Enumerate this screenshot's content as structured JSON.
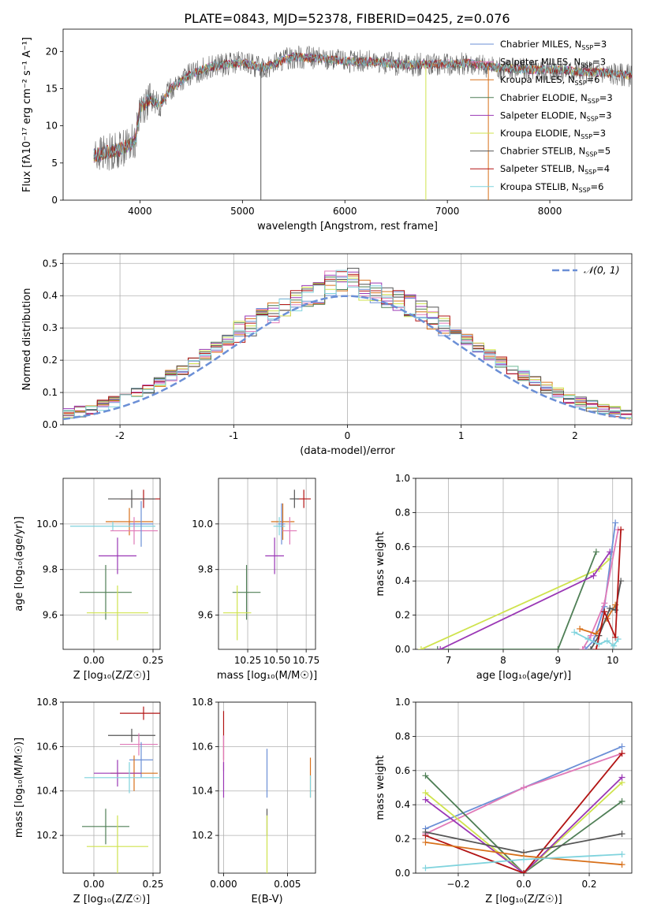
{
  "figure_title": "PLATE=0843, MJD=52378, FIBERID=0425, z=0.076",
  "colors": {
    "chabrier_miles": "#6b8fd6",
    "salpeter_miles": "#e07ab8",
    "kroupa_miles": "#d8701a",
    "chabrier_elodie": "#4f7f56",
    "salpeter_elodie": "#9a37b5",
    "kroupa_elodie": "#cfe34d",
    "chabrier_stelib": "#555555",
    "salpeter_stelib": "#b21414",
    "kroupa_stelib": "#7fd3dd"
  },
  "legend": [
    {
      "key": "chabrier_miles",
      "text": "Chabrier MILES, N",
      "sub": "SSP",
      "suffix": "=3"
    },
    {
      "key": "salpeter_miles",
      "text": "Salpeter MILES, N",
      "sub": "SSP",
      "suffix": "=3"
    },
    {
      "key": "kroupa_miles",
      "text": "Kroupa MILES, N",
      "sub": "SSP",
      "suffix": "=6"
    },
    {
      "key": "chabrier_elodie",
      "text": "Chabrier ELODIE, N",
      "sub": "SSP",
      "suffix": "=3"
    },
    {
      "key": "salpeter_elodie",
      "text": "Salpeter ELODIE, N",
      "sub": "SSP",
      "suffix": "=3"
    },
    {
      "key": "kroupa_elodie",
      "text": "Kroupa ELODIE, N",
      "sub": "SSP",
      "suffix": "=3"
    },
    {
      "key": "chabrier_stelib",
      "text": "Chabrier STELIB, N",
      "sub": "SSP",
      "suffix": "=5"
    },
    {
      "key": "salpeter_stelib",
      "text": "Salpeter STELIB, N",
      "sub": "SSP",
      "suffix": "=4"
    },
    {
      "key": "kroupa_stelib",
      "text": "Kroupa STELIB, N",
      "sub": "SSP",
      "suffix": "=6"
    }
  ],
  "chart_data": [
    {
      "id": "spectrum",
      "type": "line",
      "xlabel": "wavelength [Angstrom, rest frame]",
      "ylabel": "Flux [fλ10⁻¹⁷ erg cm⁻² s⁻¹ A⁻¹]",
      "xlim": [
        3250,
        8800
      ],
      "ylim": [
        0,
        23
      ],
      "xticks": [
        4000,
        5000,
        6000,
        7000,
        8000
      ],
      "yticks": [
        0,
        5,
        10,
        15,
        20
      ],
      "continuum": [
        [
          3550,
          6.0
        ],
        [
          3700,
          6.5
        ],
        [
          3800,
          6.8
        ],
        [
          3900,
          7.5
        ],
        [
          3960,
          8.2
        ],
        [
          4000,
          12.5
        ],
        [
          4100,
          13.5
        ],
        [
          4200,
          12.8
        ],
        [
          4300,
          15.0
        ],
        [
          4500,
          17.0
        ],
        [
          4700,
          18.0
        ],
        [
          5000,
          18.5
        ],
        [
          5200,
          17.8
        ],
        [
          5500,
          19.3
        ],
        [
          5800,
          19.0
        ],
        [
          6000,
          18.7
        ],
        [
          6300,
          18.6
        ],
        [
          6600,
          18.2
        ],
        [
          6900,
          18.3
        ],
        [
          7200,
          18.4
        ],
        [
          7500,
          17.8
        ],
        [
          7800,
          17.5
        ],
        [
          8000,
          17.6
        ],
        [
          8300,
          17.3
        ],
        [
          8500,
          17.2
        ],
        [
          8800,
          16.8
        ]
      ],
      "noisy_series": "chabrier_stelib",
      "spikes": [
        {
          "x": 5180,
          "to": 0,
          "series": "chabrier_stelib"
        },
        {
          "x": 6790,
          "to": 0,
          "series": "kroupa_elodie"
        },
        {
          "x": 7400,
          "to": 0,
          "series": "kroupa_miles"
        }
      ]
    },
    {
      "id": "residuals",
      "type": "step",
      "xlabel": "(data-model)/error",
      "ylabel": "Normed distribution",
      "xlim": [
        -2.5,
        2.5
      ],
      "ylim": [
        0,
        0.53
      ],
      "xticks": [
        -2,
        -1,
        0,
        1,
        2
      ],
      "yticks": [
        0.0,
        0.1,
        0.2,
        0.3,
        0.4,
        0.5
      ],
      "legend_label": "𝒩(0, 1)",
      "legend_placement": "top-right",
      "bin_width": 0.1,
      "normal_series_color": "#6b8fd6"
    },
    {
      "id": "age_vs_z",
      "type": "errorbar",
      "xlabel": "Z [log₁₀(Z/Z☉)]",
      "ylabel": "age  [log₁₀(age/yr)]",
      "xlim": [
        -0.13,
        0.28
      ],
      "ylim": [
        9.45,
        10.2
      ],
      "xticks": [
        0.0,
        0.25
      ],
      "xticklabels": [
        "0.00",
        "0.25"
      ],
      "yticks": [
        9.6,
        9.8,
        10.0
      ],
      "points": [
        {
          "series": "salpeter_stelib",
          "x": 0.21,
          "y": 10.11,
          "xerr": 0.1,
          "yerr": 0.04
        },
        {
          "series": "chabrier_stelib",
          "x": 0.16,
          "y": 10.11,
          "xerr": 0.1,
          "yerr": 0.04
        },
        {
          "series": "kroupa_miles",
          "x": 0.15,
          "y": 10.01,
          "xerr": 0.1,
          "yerr": 0.06
        },
        {
          "series": "kroupa_stelib",
          "x": 0.08,
          "y": 9.99,
          "xerr": 0.18,
          "yerr": 0.02
        },
        {
          "series": "salpeter_miles",
          "x": 0.17,
          "y": 9.97,
          "xerr": 0.1,
          "yerr": 0.06
        },
        {
          "series": "chabrier_miles",
          "x": 0.2,
          "y": 10.0,
          "xerr": 0.05,
          "yerr": 0.1
        },
        {
          "series": "salpeter_elodie",
          "x": 0.1,
          "y": 9.86,
          "xerr": 0.08,
          "yerr": 0.08
        },
        {
          "series": "chabrier_elodie",
          "x": 0.05,
          "y": 9.7,
          "xerr": 0.11,
          "yerr": 0.12
        },
        {
          "series": "kroupa_elodie",
          "x": 0.1,
          "y": 9.61,
          "xerr": 0.13,
          "yerr": 0.12
        }
      ]
    },
    {
      "id": "age_vs_mass",
      "type": "errorbar",
      "xlabel": "mass [log₁₀(M/M☉)]",
      "xlim": [
        10.0,
        10.83
      ],
      "ylim": [
        9.45,
        10.2
      ],
      "xticks": [
        10.25,
        10.5,
        10.75
      ],
      "xticklabels": [
        "10.25",
        "10.50",
        "10.75"
      ],
      "yticks": [
        9.6,
        9.8,
        10.0
      ],
      "points": [
        {
          "series": "salpeter_stelib",
          "x": 10.73,
          "y": 10.11,
          "xerr": 0.06,
          "yerr": 0.04
        },
        {
          "series": "chabrier_stelib",
          "x": 10.65,
          "y": 10.11,
          "xerr": 0.04,
          "yerr": 0.04
        },
        {
          "series": "kroupa_miles",
          "x": 10.55,
          "y": 10.01,
          "xerr": 0.1,
          "yerr": 0.08
        },
        {
          "series": "kroupa_stelib",
          "x": 10.52,
          "y": 9.99,
          "xerr": 0.05,
          "yerr": 0.04
        },
        {
          "series": "salpeter_miles",
          "x": 10.61,
          "y": 9.97,
          "xerr": 0.06,
          "yerr": 0.06
        },
        {
          "series": "chabrier_miles",
          "x": 10.54,
          "y": 10.0,
          "xerr": 0.03,
          "yerr": 0.09
        },
        {
          "series": "salpeter_elodie",
          "x": 10.48,
          "y": 9.86,
          "xerr": 0.08,
          "yerr": 0.08
        },
        {
          "series": "chabrier_elodie",
          "x": 10.24,
          "y": 9.7,
          "xerr": 0.12,
          "yerr": 0.12
        },
        {
          "series": "kroupa_elodie",
          "x": 10.16,
          "y": 9.61,
          "xerr": 0.12,
          "yerr": 0.12
        }
      ]
    },
    {
      "id": "weight_vs_age",
      "type": "line",
      "xlabel": "age  [log₁₀(age/yr)]",
      "ylabel": "mass weight",
      "xlim": [
        6.4,
        10.35
      ],
      "ylim": [
        0,
        1
      ],
      "xticks": [
        7,
        8,
        9,
        10
      ],
      "yticks": [
        0.0,
        0.2,
        0.4,
        0.6,
        0.8,
        1.0
      ],
      "series": [
        {
          "key": "kroupa_elodie",
          "x": [
            6.5,
            9.75,
            9.95
          ],
          "y": [
            0.0,
            0.47,
            0.53
          ]
        },
        {
          "key": "chabrier_elodie",
          "x": [
            6.8,
            9.0,
            9.7
          ],
          "y": [
            0.0,
            0.0,
            0.57
          ]
        },
        {
          "key": "salpeter_elodie",
          "x": [
            6.85,
            9.65,
            9.95
          ],
          "y": [
            0.0,
            0.43,
            0.57
          ]
        },
        {
          "key": "chabrier_miles",
          "x": [
            9.5,
            9.65,
            9.85,
            10.05
          ],
          "y": [
            0.0,
            0.05,
            0.25,
            0.74
          ]
        },
        {
          "key": "salpeter_miles",
          "x": [
            9.45,
            9.6,
            9.85,
            10.1
          ],
          "y": [
            0.0,
            0.08,
            0.27,
            0.7
          ]
        },
        {
          "key": "kroupa_miles",
          "x": [
            9.4,
            9.7,
            9.9,
            10.05
          ],
          "y": [
            0.12,
            0.09,
            0.18,
            0.26
          ]
        },
        {
          "key": "chabrier_stelib",
          "x": [
            9.6,
            9.75,
            9.95,
            10.05,
            10.15
          ],
          "y": [
            0.0,
            0.08,
            0.24,
            0.23,
            0.4
          ]
        },
        {
          "key": "salpeter_stelib",
          "x": [
            9.7,
            9.85,
            10.05,
            10.15
          ],
          "y": [
            0.0,
            0.22,
            0.07,
            0.7
          ]
        },
        {
          "key": "kroupa_stelib",
          "x": [
            9.3,
            9.55,
            9.75,
            9.9,
            10.02,
            10.1
          ],
          "y": [
            0.1,
            0.06,
            0.03,
            0.05,
            0.02,
            0.06
          ]
        }
      ]
    },
    {
      "id": "mass_vs_z",
      "type": "errorbar",
      "xlabel": "Z [log₁₀(Z/Z☉)]",
      "ylabel": "mass [log₁₀(M/M☉)]",
      "xlim": [
        -0.13,
        0.28
      ],
      "ylim": [
        10.03,
        10.8
      ],
      "xticks": [
        0.0,
        0.25
      ],
      "xticklabels": [
        "0.00",
        "0.25"
      ],
      "yticks": [
        10.2,
        10.4,
        10.6,
        10.8
      ],
      "points": [
        {
          "series": "salpeter_stelib",
          "x": 0.21,
          "y": 10.75,
          "xerr": 0.1,
          "yerr": 0.03
        },
        {
          "series": "chabrier_stelib",
          "x": 0.16,
          "y": 10.65,
          "xerr": 0.1,
          "yerr": 0.03
        },
        {
          "series": "salpeter_miles",
          "x": 0.19,
          "y": 10.61,
          "xerr": 0.08,
          "yerr": 0.05
        },
        {
          "series": "chabrier_miles",
          "x": 0.2,
          "y": 10.54,
          "xerr": 0.05,
          "yerr": 0.08
        },
        {
          "series": "kroupa_miles",
          "x": 0.17,
          "y": 10.48,
          "xerr": 0.1,
          "yerr": 0.08
        },
        {
          "series": "salpeter_elodie",
          "x": 0.1,
          "y": 10.48,
          "xerr": 0.1,
          "yerr": 0.06
        },
        {
          "series": "kroupa_stelib",
          "x": 0.15,
          "y": 10.46,
          "xerr": 0.19,
          "yerr": 0.07
        },
        {
          "series": "chabrier_elodie",
          "x": 0.05,
          "y": 10.24,
          "xerr": 0.1,
          "yerr": 0.08
        },
        {
          "series": "kroupa_elodie",
          "x": 0.1,
          "y": 10.15,
          "xerr": 0.13,
          "yerr": 0.14
        }
      ]
    },
    {
      "id": "mass_vs_ebv",
      "type": "errorbar",
      "xlabel": "E(B-V)",
      "xlim": [
        -0.0004,
        0.0072
      ],
      "ylim": [
        10.03,
        10.8
      ],
      "xticks": [
        0.0,
        0.005
      ],
      "xticklabels": [
        "0.000",
        "0.005"
      ],
      "yticks": [
        10.2,
        10.4,
        10.6,
        10.8
      ],
      "points": [
        {
          "series": "salpeter_stelib",
          "x": 0.0,
          "y": 10.65,
          "xerr": 0,
          "yerr": 0.11
        },
        {
          "series": "salpeter_miles",
          "x": 0.0,
          "y": 10.57,
          "xerr": 0,
          "yerr": 0.08
        },
        {
          "series": "salpeter_elodie",
          "x": 0.0,
          "y": 10.45,
          "xerr": 0,
          "yerr": 0.08
        },
        {
          "series": "chabrier_miles",
          "x": 0.0034,
          "y": 10.48,
          "xerr": 0,
          "yerr": 0.11
        },
        {
          "series": "chabrier_stelib",
          "x": 0.0034,
          "y": 10.26,
          "xerr": 0,
          "yerr": 0.06
        },
        {
          "series": "kroupa_elodie",
          "x": 0.0034,
          "y": 10.15,
          "xerr": 0,
          "yerr": 0.14
        },
        {
          "series": "kroupa_miles",
          "x": 0.0068,
          "y": 10.46,
          "xerr": 0,
          "yerr": 0.09
        },
        {
          "series": "kroupa_stelib",
          "x": 0.0068,
          "y": 10.42,
          "xerr": 0,
          "yerr": 0.05
        }
      ]
    },
    {
      "id": "weight_vs_z",
      "type": "line",
      "xlabel": "Z [log₁₀(Z/Z☉)]",
      "ylabel": "mass weight",
      "xlim": [
        -0.33,
        0.33
      ],
      "ylim": [
        0,
        1
      ],
      "xticks": [
        -0.2,
        0.0,
        0.2
      ],
      "xticklabels": [
        "−0.2",
        "0.0",
        "0.2"
      ],
      "yticks": [
        0.0,
        0.2,
        0.4,
        0.6,
        0.8,
        1.0
      ],
      "series": [
        {
          "key": "chabrier_miles",
          "x": [
            -0.3,
            0.0,
            0.3
          ],
          "y": [
            0.26,
            0.5,
            0.74
          ]
        },
        {
          "key": "salpeter_miles",
          "x": [
            -0.3,
            0.0,
            0.3
          ],
          "y": [
            0.23,
            0.5,
            0.7
          ]
        },
        {
          "key": "chabrier_elodie",
          "x": [
            -0.3,
            0.0,
            0.3
          ],
          "y": [
            0.57,
            0.0,
            0.42
          ]
        },
        {
          "key": "kroupa_elodie",
          "x": [
            -0.3,
            0.0,
            0.3
          ],
          "y": [
            0.47,
            0.0,
            0.53
          ]
        },
        {
          "key": "salpeter_elodie",
          "x": [
            -0.3,
            0.0,
            0.3
          ],
          "y": [
            0.43,
            0.0,
            0.56
          ]
        },
        {
          "key": "salpeter_stelib",
          "x": [
            -0.3,
            0.0,
            0.3
          ],
          "y": [
            0.22,
            0.0,
            0.7
          ]
        },
        {
          "key": "chabrier_stelib",
          "x": [
            -0.3,
            0.0,
            0.3
          ],
          "y": [
            0.24,
            0.12,
            0.23
          ]
        },
        {
          "key": "kroupa_miles",
          "x": [
            -0.3,
            0.0,
            0.3
          ],
          "y": [
            0.18,
            0.1,
            0.05
          ]
        },
        {
          "key": "kroupa_stelib",
          "x": [
            -0.3,
            0.0,
            0.3
          ],
          "y": [
            0.03,
            0.08,
            0.11
          ]
        }
      ]
    }
  ]
}
